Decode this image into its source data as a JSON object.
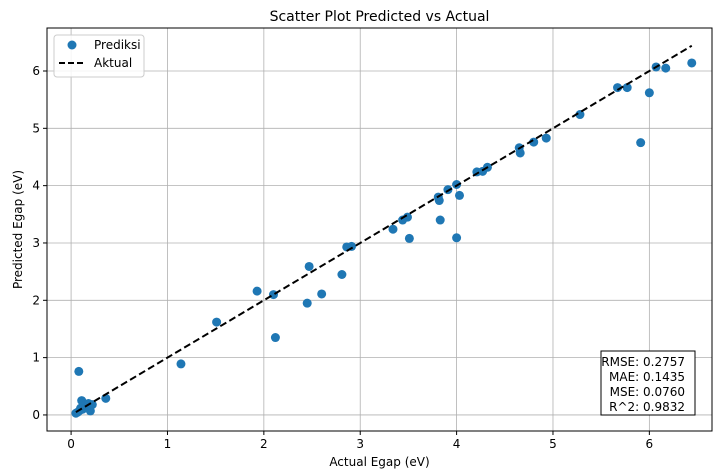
{
  "chart_data": {
    "type": "scatter",
    "title": "Scatter Plot Predicted vs Actual",
    "xlabel": "Actual Egap (eV)",
    "ylabel": "Predicted Egap (eV)",
    "xlim": [
      -0.25,
      6.65
    ],
    "ylim": [
      -0.28,
      6.75
    ],
    "xticks": [
      0,
      1,
      2,
      3,
      4,
      5,
      6
    ],
    "yticks": [
      0,
      1,
      2,
      3,
      4,
      5,
      6
    ],
    "grid": true,
    "legend_position": "upper-left",
    "colors": {
      "points": "#1f77b4",
      "line": "#000000"
    },
    "series": [
      {
        "name": "Prediksi",
        "kind": "scatter",
        "points": [
          [
            0.05,
            0.03
          ],
          [
            0.07,
            0.05
          ],
          [
            0.09,
            0.08
          ],
          [
            0.1,
            0.12
          ],
          [
            0.12,
            0.1
          ],
          [
            0.08,
            0.76
          ],
          [
            0.11,
            0.25
          ],
          [
            0.15,
            0.18
          ],
          [
            0.18,
            0.2
          ],
          [
            0.2,
            0.07
          ],
          [
            0.22,
            0.18
          ],
          [
            0.36,
            0.29
          ],
          [
            1.14,
            0.89
          ],
          [
            1.51,
            1.62
          ],
          [
            1.93,
            2.16
          ],
          [
            2.1,
            2.1
          ],
          [
            2.12,
            1.35
          ],
          [
            2.45,
            1.95
          ],
          [
            2.47,
            2.59
          ],
          [
            2.6,
            2.11
          ],
          [
            2.81,
            2.45
          ],
          [
            2.86,
            2.93
          ],
          [
            2.91,
            2.94
          ],
          [
            3.34,
            3.24
          ],
          [
            3.44,
            3.4
          ],
          [
            3.49,
            3.45
          ],
          [
            3.51,
            3.08
          ],
          [
            3.81,
            3.8
          ],
          [
            3.82,
            3.74
          ],
          [
            3.83,
            3.4
          ],
          [
            3.91,
            3.93
          ],
          [
            4.0,
            4.02
          ],
          [
            4.0,
            3.09
          ],
          [
            4.03,
            3.83
          ],
          [
            4.21,
            4.24
          ],
          [
            4.27,
            4.25
          ],
          [
            4.32,
            4.32
          ],
          [
            4.65,
            4.66
          ],
          [
            4.66,
            4.57
          ],
          [
            4.8,
            4.76
          ],
          [
            4.93,
            4.83
          ],
          [
            5.28,
            5.24
          ],
          [
            5.67,
            5.71
          ],
          [
            5.77,
            5.71
          ],
          [
            5.91,
            4.75
          ],
          [
            6.0,
            5.62
          ],
          [
            6.07,
            6.07
          ],
          [
            6.17,
            6.05
          ],
          [
            6.44,
            6.14
          ]
        ]
      },
      {
        "name": "Aktual",
        "kind": "line",
        "style": "dashed",
        "points": [
          [
            0.05,
            0.05
          ],
          [
            6.44,
            6.44
          ]
        ]
      }
    ],
    "annotation": {
      "lines": [
        "RMSE: 0.2757",
        "MAE: 0.1435",
        "MSE: 0.0760",
        "R^2: 0.9832"
      ],
      "position": "bottom-right"
    }
  }
}
